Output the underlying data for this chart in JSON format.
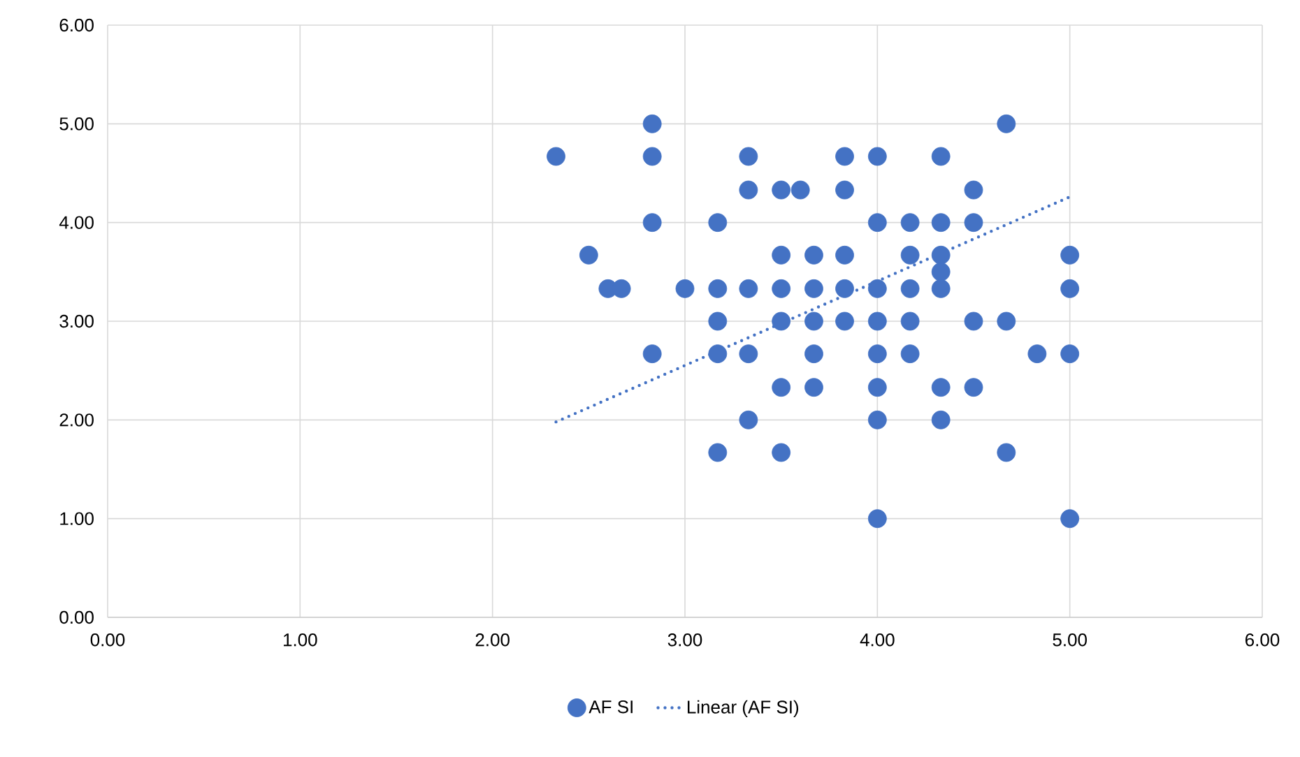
{
  "chart_data": {
    "type": "scatter",
    "grid": true,
    "legend": "bottom",
    "xlim": [
      0,
      6
    ],
    "ylim": [
      0,
      6
    ],
    "xticks": [
      {
        "value": 0,
        "label": "0.00"
      },
      {
        "value": 1,
        "label": "1.00"
      },
      {
        "value": 2,
        "label": "2.00"
      },
      {
        "value": 3,
        "label": "3.00"
      },
      {
        "value": 4,
        "label": "4.00"
      },
      {
        "value": 5,
        "label": "5.00"
      },
      {
        "value": 6,
        "label": "6.00"
      }
    ],
    "yticks": [
      {
        "value": 0,
        "label": "0.00"
      },
      {
        "value": 1,
        "label": "1.00"
      },
      {
        "value": 2,
        "label": "2.00"
      },
      {
        "value": 3,
        "label": "3.00"
      },
      {
        "value": 4,
        "label": "4.00"
      },
      {
        "value": 5,
        "label": "5.00"
      },
      {
        "value": 6,
        "label": "6.00"
      }
    ],
    "series": [
      {
        "name": "AF SI",
        "color": "#4472c4",
        "marker": "circle",
        "x": [
          2.33,
          2.5,
          2.6,
          2.67,
          2.83,
          2.83,
          2.83,
          2.83,
          3,
          3.17,
          3.17,
          3.17,
          3.17,
          3.17,
          3.33,
          3.33,
          3.33,
          3.33,
          3.33,
          3.5,
          3.5,
          3.5,
          3.5,
          3.5,
          3.5,
          3.6,
          3.67,
          3.67,
          3.67,
          3.67,
          3.67,
          3.83,
          3.83,
          3.83,
          3.83,
          3.83,
          4,
          4,
          4,
          4,
          4,
          4,
          4,
          4,
          4.17,
          4.17,
          4.17,
          4.17,
          4.17,
          4.33,
          4.33,
          4.33,
          4.33,
          4.33,
          4.33,
          4.33,
          4.5,
          4.5,
          4.5,
          4.5,
          4.67,
          4.67,
          4.67,
          4.83,
          5,
          5,
          5,
          5
        ],
        "values": [
          4.67,
          3.67,
          3.33,
          3.33,
          5,
          4.67,
          4,
          2.67,
          3.33,
          4,
          3.33,
          3,
          2.67,
          1.67,
          4.67,
          4.33,
          3.33,
          2.67,
          2,
          4.33,
          3.67,
          3.33,
          3,
          2.33,
          1.67,
          4.33,
          3.67,
          3.33,
          3,
          2.67,
          2.33,
          4.67,
          4.33,
          3.67,
          3.33,
          3,
          4.67,
          4,
          3.33,
          3,
          2.67,
          2.33,
          2,
          1,
          4,
          3.67,
          3.33,
          3,
          2.67,
          4.67,
          4,
          3.67,
          3.5,
          3.33,
          2.33,
          2,
          4.33,
          4,
          3,
          2.33,
          5,
          3,
          1.67,
          2.67,
          3.67,
          3.33,
          2.67,
          1
        ]
      },
      {
        "name": "Linear (AF SI)",
        "type": "line",
        "line_style": "dotted",
        "marker": "none",
        "color": "#4472c4",
        "x": [
          2.33,
          5
        ],
        "values": [
          1.98,
          4.26
        ]
      }
    ]
  }
}
